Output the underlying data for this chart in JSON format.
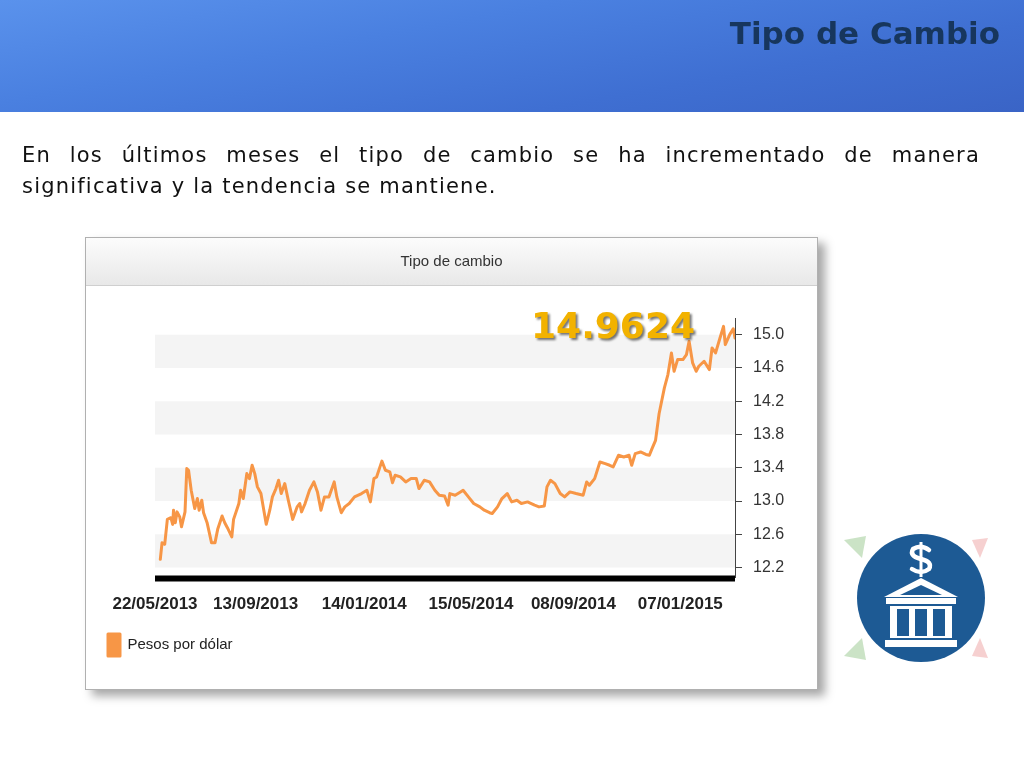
{
  "chart_data": {
    "type": "line",
    "title": "Tipo de Cambio",
    "subtitle": "En los últimos meses el tipo de cambio se ha incrementado de manera significativa y la tendencia se mantiene.",
    "annotations": [
      "Tipo de cambio",
      {
        "text": "14.9624",
        "x": "2015-03-10",
        "y": 14.9624
      }
    ],
    "x": [
      "2013-05-28",
      "2013-05-30",
      "2013-06-02",
      "2013-06-05",
      "2013-06-09",
      "2013-06-11",
      "2013-06-12",
      "2013-06-14",
      "2013-06-16",
      "2013-06-19",
      "2013-06-21",
      "2013-06-25",
      "2013-06-27",
      "2013-06-29",
      "2013-07-02",
      "2013-07-06",
      "2013-07-09",
      "2013-07-11",
      "2013-07-14",
      "2013-07-16",
      "2013-07-20",
      "2013-07-25",
      "2013-07-29",
      "2013-08-01",
      "2013-08-06",
      "2013-08-09",
      "2013-08-12",
      "2013-08-17",
      "2013-08-19",
      "2013-08-25",
      "2013-08-27",
      "2013-08-30",
      "2013-09-03",
      "2013-09-06",
      "2013-09-09",
      "2013-09-12",
      "2013-09-15",
      "2013-09-19",
      "2013-09-25",
      "2013-09-29",
      "2013-10-02",
      "2013-10-06",
      "2013-10-09",
      "2013-10-12",
      "2013-10-16",
      "2013-10-20",
      "2013-10-25",
      "2013-10-30",
      "2013-11-02",
      "2013-11-04",
      "2013-11-08",
      "2013-11-13",
      "2013-11-18",
      "2013-11-22",
      "2013-11-26",
      "2013-11-30",
      "2013-12-05",
      "2013-12-11",
      "2013-12-14",
      "2013-12-19",
      "2013-12-23",
      "2013-12-28",
      "2014-01-03",
      "2014-01-11",
      "2014-01-17",
      "2014-01-21",
      "2014-01-25",
      "2014-01-28",
      "2014-02-03",
      "2014-02-07",
      "2014-02-12",
      "2014-02-15",
      "2014-02-18",
      "2014-02-24",
      "2014-03-02",
      "2014-03-08",
      "2014-03-14",
      "2014-03-17",
      "2014-03-23",
      "2014-03-29",
      "2014-04-04",
      "2014-04-09",
      "2014-04-15",
      "2014-04-19",
      "2014-04-21",
      "2014-04-27",
      "2014-05-03",
      "2014-05-06",
      "2014-05-12",
      "2014-05-18",
      "2014-05-25",
      "2014-05-30",
      "2014-06-05",
      "2014-06-08",
      "2014-06-14",
      "2014-06-19",
      "2014-06-25",
      "2014-06-30",
      "2014-07-06",
      "2014-07-11",
      "2014-07-18",
      "2014-07-26",
      "2014-07-31",
      "2014-08-06",
      "2014-08-09",
      "2014-08-13",
      "2014-08-18",
      "2014-08-24",
      "2014-08-29",
      "2014-09-04",
      "2014-09-11",
      "2014-09-19",
      "2014-09-23",
      "2014-09-26",
      "2014-10-02",
      "2014-10-08",
      "2014-10-14",
      "2014-10-19",
      "2014-10-23",
      "2014-10-29",
      "2014-11-04",
      "2014-11-10",
      "2014-11-13",
      "2014-11-17",
      "2014-11-23",
      "2014-11-29",
      "2014-12-03",
      "2014-12-06",
      "2014-12-10",
      "2014-12-14",
      "2014-12-20",
      "2014-12-24",
      "2014-12-28",
      "2014-12-31",
      "2015-01-04",
      "2015-01-10",
      "2015-01-14",
      "2015-01-17",
      "2015-01-21",
      "2015-01-25",
      "2015-01-28",
      "2015-02-03",
      "2015-02-09",
      "2015-02-12",
      "2015-02-16",
      "2015-02-21",
      "2015-02-25",
      "2015-02-27",
      "2015-03-04",
      "2015-03-08",
      "2015-03-10"
    ],
    "series": [
      {
        "name": "Pesos por dólar",
        "color": "#f79646",
        "values": [
          12.3,
          12.5,
          12.48,
          12.78,
          12.8,
          12.72,
          12.89,
          12.74,
          12.87,
          12.81,
          12.69,
          12.87,
          13.39,
          13.37,
          13.13,
          12.91,
          13.03,
          12.89,
          13.01,
          12.86,
          12.74,
          12.5,
          12.5,
          12.66,
          12.82,
          12.74,
          12.68,
          12.57,
          12.78,
          12.97,
          13.13,
          13.03,
          13.33,
          13.27,
          13.43,
          13.33,
          13.17,
          13.09,
          12.72,
          12.89,
          13.05,
          13.15,
          13.25,
          13.09,
          13.21,
          13.01,
          12.78,
          12.93,
          12.97,
          12.87,
          12.97,
          13.13,
          13.23,
          13.11,
          12.89,
          13.05,
          13.05,
          13.23,
          13.05,
          12.86,
          12.93,
          12.97,
          13.05,
          13.09,
          13.13,
          12.99,
          13.27,
          13.29,
          13.48,
          13.37,
          13.35,
          13.22,
          13.31,
          13.29,
          13.23,
          13.27,
          13.27,
          13.15,
          13.25,
          13.23,
          13.13,
          13.07,
          13.06,
          12.95,
          13.09,
          13.07,
          13.11,
          13.13,
          13.05,
          12.97,
          12.93,
          12.89,
          12.86,
          12.85,
          12.93,
          13.03,
          13.09,
          12.99,
          13.01,
          12.97,
          12.99,
          12.95,
          12.93,
          12.94,
          13.17,
          13.25,
          13.21,
          13.09,
          13.05,
          13.11,
          13.09,
          13.07,
          13.23,
          13.19,
          13.27,
          13.47,
          13.45,
          13.43,
          13.41,
          13.55,
          13.53,
          13.55,
          13.43,
          13.57,
          13.59,
          13.56,
          13.55,
          13.63,
          13.73,
          14.05,
          14.36,
          14.52,
          14.78,
          14.56,
          14.7,
          14.7,
          14.76,
          14.92,
          14.66,
          14.56,
          14.62,
          14.68,
          14.58,
          14.84,
          14.78,
          14.96,
          15.1,
          14.88,
          15.0,
          15.07,
          14.96
        ]
      }
    ],
    "xlim": [
      "2013-05-22",
      "2015-03-10"
    ],
    "xticks": [
      {
        "value": "2013-05-22",
        "label": "22/05/2013"
      },
      {
        "value": "2013-09-13",
        "label": "13/09/2013"
      },
      {
        "value": "2014-01-14",
        "label": "14/01/2014"
      },
      {
        "value": "2014-05-15",
        "label": "15/05/2014"
      },
      {
        "value": "2014-09-08",
        "label": "08/09/2014"
      },
      {
        "value": "2015-01-07",
        "label": "07/01/2015"
      }
    ],
    "ylim": [
      12.08,
      15.2
    ],
    "yticks": [
      12.2,
      12.6,
      {
        "value": 13,
        "label": "13.0"
      },
      13.4,
      13.8,
      14.2,
      14.6,
      {
        "value": 15,
        "label": "15.0"
      }
    ],
    "bands": [
      {
        "axis": "y",
        "from": 14.6,
        "to": 15,
        "color": "#f4f4f4"
      },
      {
        "axis": "y",
        "from": 13.8,
        "to": 14.2,
        "color": "#f4f4f4"
      },
      {
        "axis": "y",
        "from": 13,
        "to": 13.4,
        "color": "#f4f4f4"
      },
      {
        "axis": "y",
        "from": 12.2,
        "to": 12.6,
        "color": "#f4f4f4"
      }
    ],
    "legend": "bottom left"
  }
}
